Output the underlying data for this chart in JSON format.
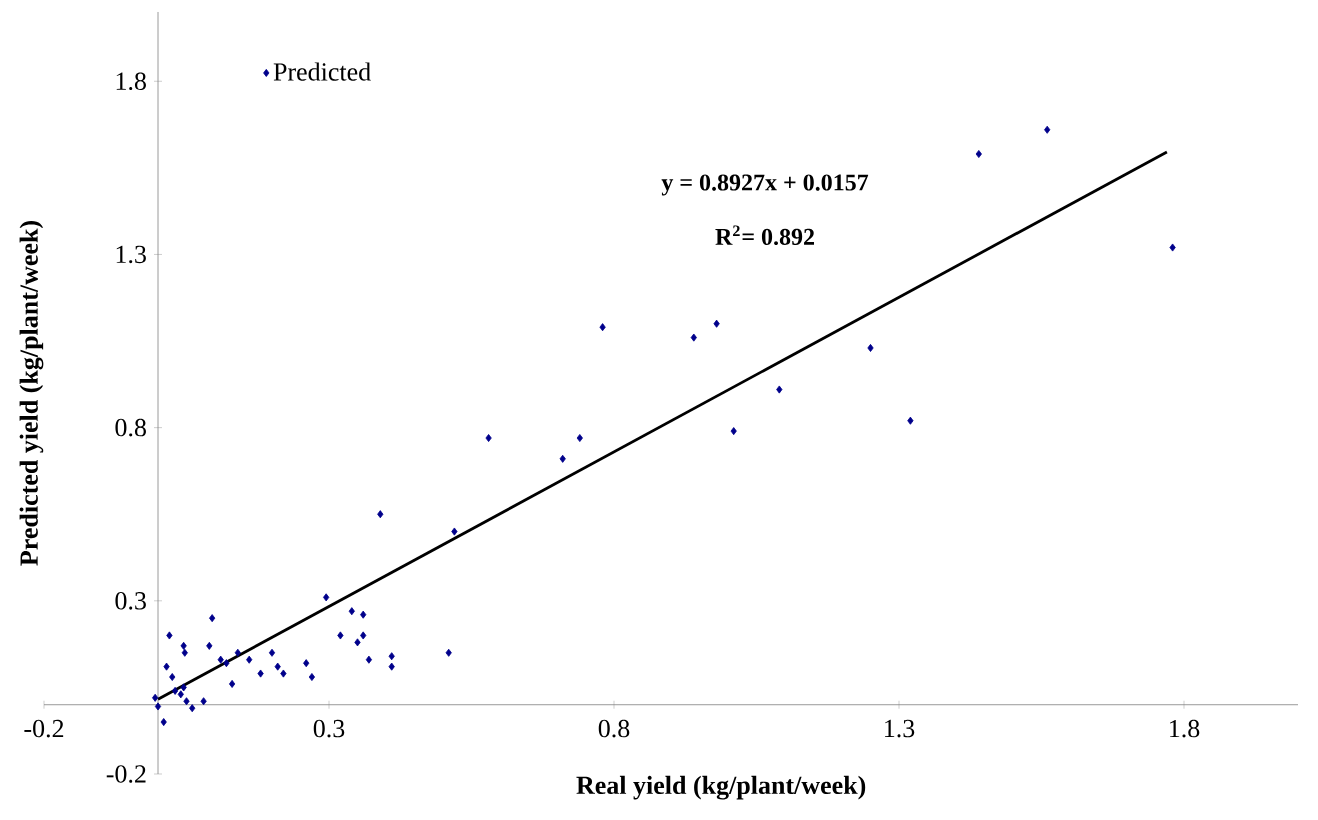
{
  "chart_data": {
    "type": "scatter",
    "xlabel": "Real yield (kg/plant/week)",
    "ylabel": "Predicted yield (kg/plant/week)",
    "xlim": [
      -0.2,
      2.0
    ],
    "ylim": [
      -0.2,
      2.0
    ],
    "xticks": [
      -0.2,
      0.3,
      0.8,
      1.3,
      1.8
    ],
    "yticks": [
      -0.2,
      0.3,
      0.8,
      1.3,
      1.8
    ],
    "grid": false,
    "legend": "top left",
    "marker": "diamond",
    "annotations": [
      "y = 0.8927x + 0.0157",
      "R$^{2}$= 0.892"
    ],
    "series": [
      {
        "name": "Predicted",
        "color": "#00008b",
        "x": [
          1.44,
          1.56,
          1.78,
          0.94,
          0.98,
          1.25,
          1.09,
          1.01,
          1.32,
          0.78,
          0.58,
          0.71,
          0.74,
          0.39,
          0.52,
          0.295,
          0.34,
          0.36,
          0.32,
          0.36,
          0.35,
          0.37,
          0.41,
          0.41,
          0.51,
          0.26,
          0.27,
          0.095,
          0.02,
          0.045,
          0.047,
          0.09,
          0.11,
          0.14,
          0.12,
          0.16,
          0.2,
          0.21,
          0.22,
          0.13,
          0.18,
          0.015,
          0.025,
          0.03,
          0.045,
          0.05,
          0.08,
          0.06,
          -0.005,
          0.0,
          0.01,
          0.04
        ],
        "values": [
          1.59,
          1.66,
          1.32,
          1.06,
          1.1,
          1.03,
          0.91,
          0.79,
          0.82,
          1.09,
          0.77,
          0.71,
          0.77,
          0.55,
          0.5,
          0.31,
          0.27,
          0.26,
          0.2,
          0.2,
          0.18,
          0.13,
          0.14,
          0.11,
          0.15,
          0.12,
          0.08,
          0.25,
          0.2,
          0.17,
          0.15,
          0.17,
          0.13,
          0.15,
          0.12,
          0.13,
          0.15,
          0.11,
          0.09,
          0.06,
          0.09,
          0.11,
          0.08,
          0.04,
          0.05,
          0.01,
          0.01,
          -0.01,
          0.02,
          -0.005,
          -0.05,
          0.03
        ]
      },
      {
        "type": "line",
        "color": "#000000",
        "marker": "none",
        "x": [
          0.0,
          1.77
        ],
        "values": [
          0.0157,
          1.596
        ]
      }
    ]
  }
}
